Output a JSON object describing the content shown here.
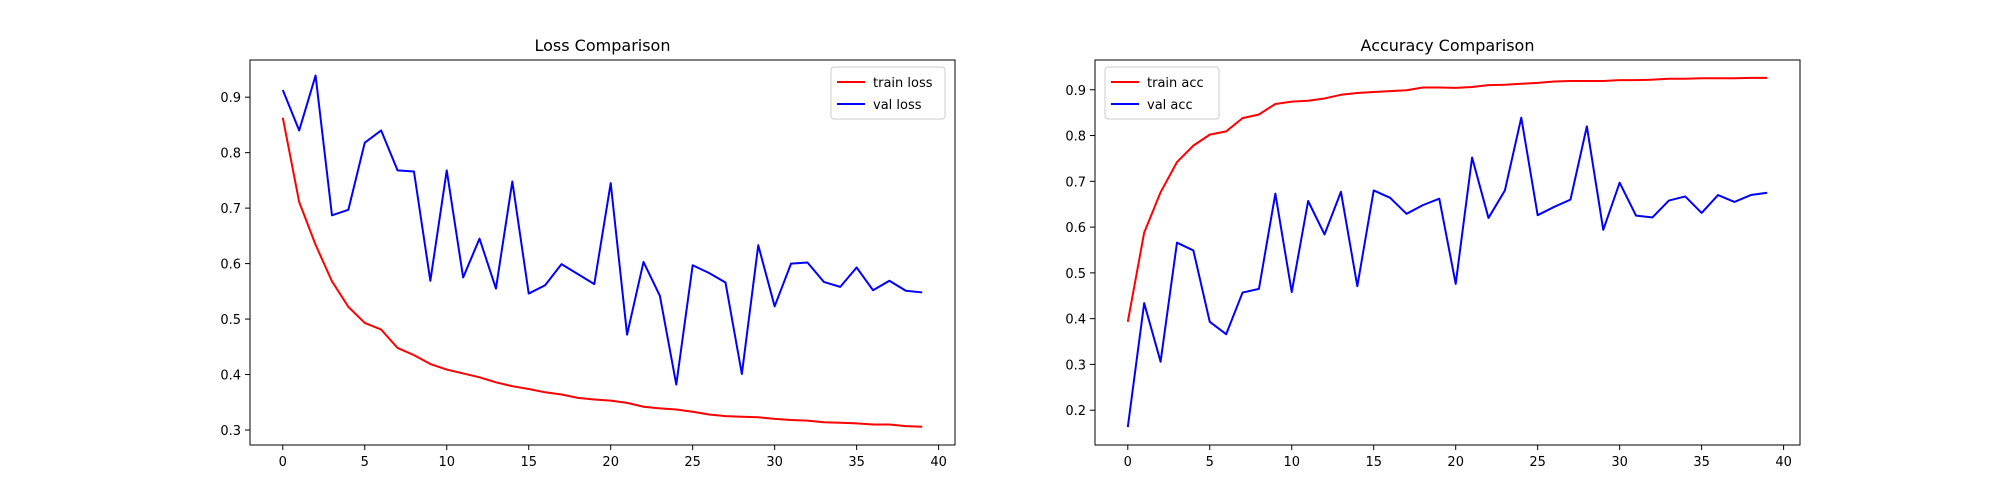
{
  "chart_data": [
    {
      "type": "line",
      "title": "Loss Comparison",
      "xlabel": "",
      "ylabel": "",
      "xlim": [
        -2,
        41
      ],
      "ylim": [
        0.273,
        0.967
      ],
      "xticks": [
        0,
        5,
        10,
        15,
        20,
        25,
        30,
        35,
        40
      ],
      "yticks": [
        0.3,
        0.4,
        0.5,
        0.6,
        0.7,
        0.8,
        0.9
      ],
      "grid": false,
      "legend_position": "top-right",
      "x": [
        0,
        1,
        2,
        3,
        4,
        5,
        6,
        7,
        8,
        9,
        10,
        11,
        12,
        13,
        14,
        15,
        16,
        17,
        18,
        19,
        20,
        21,
        22,
        23,
        24,
        25,
        26,
        27,
        28,
        29,
        30,
        31,
        32,
        33,
        34,
        35,
        36,
        37,
        38,
        39
      ],
      "series": [
        {
          "name": "train loss",
          "color": "#ff0000",
          "values": [
            0.863,
            0.711,
            0.634,
            0.568,
            0.522,
            0.493,
            0.481,
            0.448,
            0.435,
            0.419,
            0.409,
            0.402,
            0.395,
            0.386,
            0.379,
            0.374,
            0.368,
            0.364,
            0.358,
            0.355,
            0.353,
            0.349,
            0.342,
            0.339,
            0.337,
            0.333,
            0.328,
            0.325,
            0.324,
            0.323,
            0.32,
            0.318,
            0.317,
            0.314,
            0.313,
            0.312,
            0.31,
            0.31,
            0.307,
            0.306
          ]
        },
        {
          "name": "val loss",
          "color": "#0000ff",
          "values": [
            0.913,
            0.84,
            0.939,
            0.687,
            0.697,
            0.818,
            0.84,
            0.768,
            0.766,
            0.569,
            0.768,
            0.575,
            0.645,
            0.555,
            0.748,
            0.546,
            0.561,
            0.599,
            0.581,
            0.563,
            0.745,
            0.472,
            0.603,
            0.542,
            0.382,
            0.597,
            0.583,
            0.566,
            0.401,
            0.633,
            0.523,
            0.6,
            0.602,
            0.567,
            0.558,
            0.593,
            0.552,
            0.569,
            0.551,
            0.548
          ]
        }
      ]
    },
    {
      "type": "line",
      "title": "Accuracy Comparison",
      "xlabel": "",
      "ylabel": "",
      "xlim": [
        -2,
        41
      ],
      "ylim": [
        0.124,
        0.965
      ],
      "xticks": [
        0,
        5,
        10,
        15,
        20,
        25,
        30,
        35,
        40
      ],
      "yticks": [
        0.2,
        0.3,
        0.4,
        0.5,
        0.6,
        0.7,
        0.8,
        0.9
      ],
      "grid": false,
      "legend_position": "top-left",
      "x": [
        0,
        1,
        2,
        3,
        4,
        5,
        6,
        7,
        8,
        9,
        10,
        11,
        12,
        13,
        14,
        15,
        16,
        17,
        18,
        19,
        20,
        21,
        22,
        23,
        24,
        25,
        26,
        27,
        28,
        29,
        30,
        31,
        32,
        33,
        34,
        35,
        36,
        37,
        38,
        39
      ],
      "series": [
        {
          "name": "train acc",
          "color": "#ff0000",
          "values": [
            0.393,
            0.588,
            0.676,
            0.742,
            0.778,
            0.802,
            0.809,
            0.838,
            0.846,
            0.869,
            0.874,
            0.876,
            0.881,
            0.889,
            0.893,
            0.895,
            0.897,
            0.899,
            0.905,
            0.905,
            0.904,
            0.906,
            0.91,
            0.911,
            0.913,
            0.915,
            0.918,
            0.919,
            0.919,
            0.919,
            0.921,
            0.921,
            0.922,
            0.924,
            0.924,
            0.925,
            0.925,
            0.925,
            0.926,
            0.926
          ]
        },
        {
          "name": "val acc",
          "color": "#0000ff",
          "values": [
            0.163,
            0.434,
            0.306,
            0.566,
            0.549,
            0.393,
            0.366,
            0.457,
            0.465,
            0.673,
            0.458,
            0.657,
            0.584,
            0.677,
            0.471,
            0.68,
            0.664,
            0.629,
            0.648,
            0.662,
            0.476,
            0.752,
            0.62,
            0.68,
            0.839,
            0.626,
            0.644,
            0.66,
            0.82,
            0.594,
            0.697,
            0.625,
            0.621,
            0.658,
            0.667,
            0.631,
            0.67,
            0.655,
            0.67,
            0.675
          ]
        }
      ]
    }
  ]
}
